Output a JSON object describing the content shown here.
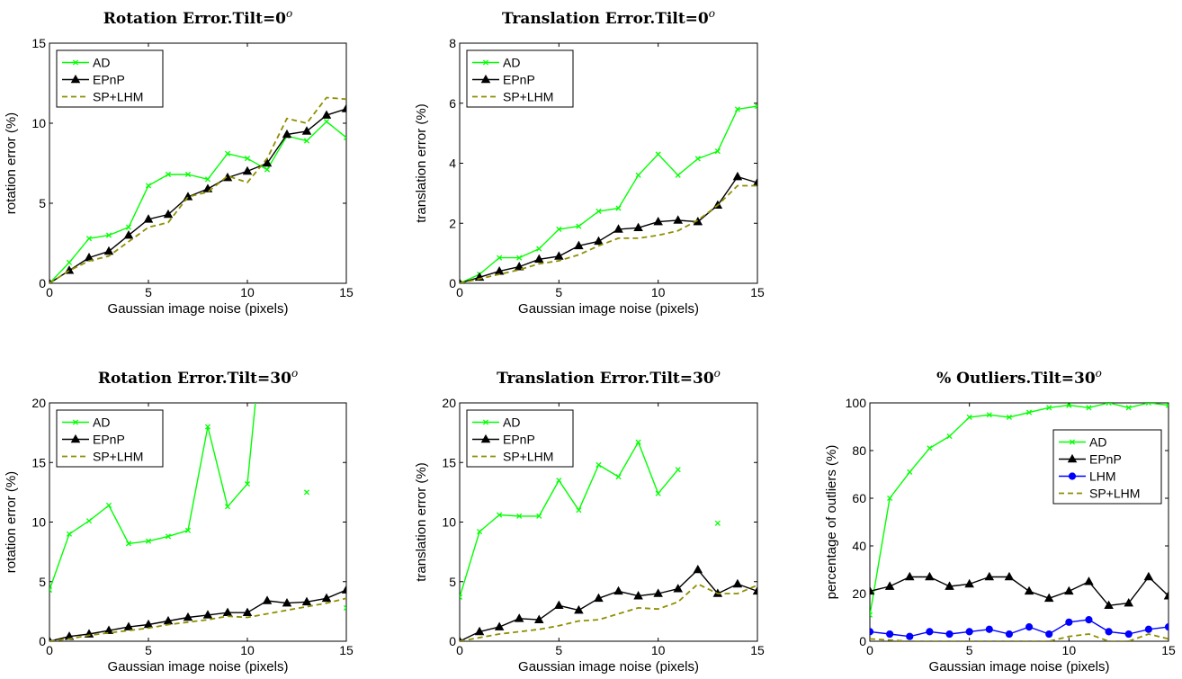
{
  "chart_data": [
    {
      "type": "line",
      "title": "Rotation Error.Tilt=0",
      "title_sup": "o",
      "xlabel": "Gaussian image noise (pixels)",
      "ylabel": "rotation error (%)",
      "xlim": [
        0,
        15
      ],
      "ylim": [
        0,
        15
      ],
      "xticks": [
        0,
        5,
        10,
        15
      ],
      "yticks": [
        0,
        5,
        10,
        15
      ],
      "legend_position": "top-left",
      "series": [
        {
          "name": "AD",
          "color": "#00ff00",
          "marker": "x",
          "dash": "solid",
          "x": [
            0,
            1,
            2,
            3,
            4,
            5,
            6,
            7,
            8,
            9,
            10,
            11,
            12,
            13,
            14,
            15
          ],
          "y": [
            0,
            1.3,
            2.8,
            3.0,
            3.5,
            6.1,
            6.8,
            6.8,
            6.5,
            8.1,
            7.8,
            7.1,
            9.2,
            8.9,
            10.1,
            9.1
          ]
        },
        {
          "name": "EPnP",
          "color": "#000000",
          "marker": "triangle",
          "dash": "solid",
          "x": [
            0,
            1,
            2,
            3,
            4,
            5,
            6,
            7,
            8,
            9,
            10,
            11,
            12,
            13,
            14,
            15
          ],
          "y": [
            0,
            0.8,
            1.6,
            2.0,
            3.0,
            4.0,
            4.3,
            5.4,
            5.9,
            6.6,
            7.0,
            7.5,
            9.3,
            9.5,
            10.5,
            10.9
          ]
        },
        {
          "name": "SP+LHM",
          "color": "#8f8f00",
          "marker": "none",
          "dash": "dashed",
          "x": [
            0,
            1,
            2,
            3,
            4,
            5,
            6,
            7,
            8,
            9,
            10,
            11,
            12,
            13,
            14,
            15
          ],
          "y": [
            0,
            0.8,
            1.4,
            1.7,
            2.6,
            3.5,
            3.8,
            5.4,
            5.7,
            6.7,
            6.3,
            7.8,
            10.3,
            10.0,
            11.6,
            11.5
          ]
        }
      ]
    },
    {
      "type": "line",
      "title": "Translation Error.Tilt=0",
      "title_sup": "o",
      "xlabel": "Gaussian image noise (pixels)",
      "ylabel": "translation error (%)",
      "xlim": [
        0,
        15
      ],
      "ylim": [
        0,
        8
      ],
      "xticks": [
        0,
        5,
        10,
        15
      ],
      "yticks": [
        0,
        2,
        4,
        6,
        8
      ],
      "legend_position": "top-left",
      "series": [
        {
          "name": "AD",
          "color": "#00ff00",
          "marker": "x",
          "dash": "solid",
          "x": [
            0,
            1,
            2,
            3,
            4,
            5,
            6,
            7,
            8,
            9,
            10,
            11,
            12,
            13,
            14,
            15
          ],
          "y": [
            0,
            0.3,
            0.85,
            0.85,
            1.15,
            1.8,
            1.9,
            2.4,
            2.5,
            3.6,
            4.3,
            3.6,
            4.15,
            4.4,
            5.8,
            5.9
          ]
        },
        {
          "name": "EPnP",
          "color": "#000000",
          "marker": "triangle",
          "dash": "solid",
          "x": [
            0,
            1,
            2,
            3,
            4,
            5,
            6,
            7,
            8,
            9,
            10,
            11,
            12,
            13,
            14,
            15
          ],
          "y": [
            0,
            0.2,
            0.4,
            0.55,
            0.8,
            0.9,
            1.25,
            1.4,
            1.8,
            1.85,
            2.05,
            2.1,
            2.05,
            2.6,
            3.55,
            3.35
          ]
        },
        {
          "name": "SP+LHM",
          "color": "#8f8f00",
          "marker": "none",
          "dash": "dashed",
          "x": [
            0,
            1,
            2,
            3,
            4,
            5,
            6,
            7,
            8,
            9,
            10,
            11,
            12,
            13,
            14,
            15
          ],
          "y": [
            0,
            0.15,
            0.3,
            0.45,
            0.65,
            0.75,
            0.95,
            1.25,
            1.5,
            1.5,
            1.6,
            1.75,
            2.1,
            2.6,
            3.25,
            3.25
          ]
        }
      ]
    },
    {
      "type": "line",
      "title": "Rotation Error.Tilt=30",
      "title_sup": "o",
      "xlabel": "Gaussian image noise (pixels)",
      "ylabel": "rotation error (%)",
      "xlim": [
        0,
        15
      ],
      "ylim": [
        0,
        20
      ],
      "xticks": [
        0,
        5,
        10,
        15
      ],
      "yticks": [
        0,
        5,
        10,
        15,
        20
      ],
      "legend_position": "top-left",
      "series": [
        {
          "name": "AD",
          "color": "#00ff00",
          "marker": "x",
          "dash": "solid",
          "x": [
            0,
            1,
            2,
            3,
            4,
            5,
            6,
            7,
            8,
            9,
            10,
            11,
            null,
            13,
            null,
            15
          ],
          "y": [
            4.3,
            9.0,
            10.1,
            11.4,
            8.2,
            8.4,
            8.8,
            9.3,
            18.0,
            11.3,
            13.2,
            30,
            null,
            12.5,
            null,
            2.8
          ]
        },
        {
          "name": "EPnP",
          "color": "#000000",
          "marker": "triangle",
          "dash": "solid",
          "x": [
            0,
            1,
            2,
            3,
            4,
            5,
            6,
            7,
            8,
            9,
            10,
            11,
            12,
            13,
            14,
            15
          ],
          "y": [
            0,
            0.4,
            0.6,
            0.9,
            1.2,
            1.4,
            1.7,
            2.0,
            2.2,
            2.4,
            2.4,
            3.4,
            3.2,
            3.3,
            3.6,
            4.3
          ]
        },
        {
          "name": "SP+LHM",
          "color": "#8f8f00",
          "marker": "none",
          "dash": "dashed",
          "x": [
            0,
            1,
            2,
            3,
            4,
            5,
            6,
            7,
            8,
            9,
            10,
            11,
            12,
            13,
            14,
            15
          ],
          "y": [
            0,
            0.2,
            0.5,
            0.7,
            0.9,
            1.1,
            1.4,
            1.6,
            1.8,
            2.1,
            2.0,
            2.3,
            2.6,
            2.9,
            3.2,
            3.6
          ]
        }
      ]
    },
    {
      "type": "line",
      "title": "Translation Error.Tilt=30",
      "title_sup": "o",
      "xlabel": "Gaussian image noise (pixels)",
      "ylabel": "translation error (%)",
      "xlim": [
        0,
        15
      ],
      "ylim": [
        0,
        20
      ],
      "xticks": [
        0,
        5,
        10,
        15
      ],
      "yticks": [
        0,
        5,
        10,
        15,
        20
      ],
      "legend_position": "top-left",
      "series": [
        {
          "name": "AD",
          "color": "#00ff00",
          "marker": "x",
          "dash": "solid",
          "x": [
            0,
            1,
            2,
            3,
            4,
            5,
            6,
            7,
            8,
            9,
            10,
            11,
            null,
            13,
            null,
            null
          ],
          "y": [
            3.7,
            9.2,
            10.6,
            10.5,
            10.5,
            13.5,
            11.0,
            14.8,
            13.8,
            16.7,
            12.4,
            14.4,
            null,
            9.9,
            null,
            null
          ]
        },
        {
          "name": "EPnP",
          "color": "#000000",
          "marker": "triangle",
          "dash": "solid",
          "x": [
            0,
            1,
            2,
            3,
            4,
            5,
            6,
            7,
            8,
            9,
            10,
            11,
            12,
            13,
            14,
            15
          ],
          "y": [
            0,
            0.8,
            1.2,
            1.9,
            1.8,
            3.0,
            2.6,
            3.6,
            4.2,
            3.8,
            4.0,
            4.4,
            6.0,
            4.0,
            4.8,
            4.2
          ]
        },
        {
          "name": "SP+LHM",
          "color": "#8f8f00",
          "marker": "none",
          "dash": "dashed",
          "x": [
            0,
            1,
            2,
            3,
            4,
            5,
            6,
            7,
            8,
            9,
            10,
            11,
            12,
            13,
            14,
            15
          ],
          "y": [
            0,
            0.3,
            0.6,
            0.8,
            1.0,
            1.3,
            1.7,
            1.8,
            2.3,
            2.8,
            2.7,
            3.3,
            4.8,
            4.0,
            4.0,
            4.7
          ]
        }
      ]
    },
    {
      "type": "line",
      "title": "% Outliers.Tilt=30",
      "title_sup": "o",
      "xlabel": "Gaussian image noise (pixels)",
      "ylabel": "percentage of outliers (%)",
      "xlim": [
        0,
        15
      ],
      "ylim": [
        0,
        100
      ],
      "xticks": [
        0,
        5,
        10,
        15
      ],
      "yticks": [
        0,
        20,
        40,
        60,
        80,
        100
      ],
      "legend_position": "right",
      "series": [
        {
          "name": "AD",
          "color": "#00ff00",
          "marker": "x",
          "dash": "solid",
          "x": [
            0,
            1,
            2,
            3,
            4,
            5,
            6,
            7,
            8,
            9,
            10,
            11,
            12,
            13,
            14,
            15
          ],
          "y": [
            11,
            60,
            71,
            81,
            86,
            94,
            95,
            94,
            96,
            98,
            99,
            98,
            100,
            98,
            100,
            99
          ]
        },
        {
          "name": "EPnP",
          "color": "#000000",
          "marker": "triangle",
          "dash": "solid",
          "x": [
            0,
            1,
            2,
            3,
            4,
            5,
            6,
            7,
            8,
            9,
            10,
            11,
            12,
            13,
            14,
            15
          ],
          "y": [
            21,
            23,
            27,
            27,
            23,
            24,
            27,
            27,
            21,
            18,
            21,
            25,
            15,
            16,
            27,
            19
          ]
        },
        {
          "name": "LHM",
          "color": "#0000ff",
          "marker": "circle",
          "dash": "solid",
          "x": [
            0,
            1,
            2,
            3,
            4,
            5,
            6,
            7,
            8,
            9,
            10,
            11,
            12,
            13,
            14,
            15
          ],
          "y": [
            4,
            3,
            2,
            4,
            3,
            4,
            5,
            3,
            6,
            3,
            8,
            9,
            4,
            3,
            5,
            6
          ]
        },
        {
          "name": "SP+LHM",
          "color": "#8f8f00",
          "marker": "none",
          "dash": "dashed",
          "x": [
            0,
            1,
            2,
            3,
            4,
            5,
            6,
            7,
            8,
            9,
            10,
            11,
            12,
            13,
            14,
            15
          ],
          "y": [
            1,
            0.5,
            0,
            0,
            0,
            0,
            0,
            0,
            0,
            0,
            2,
            3,
            0,
            0,
            3,
            1
          ]
        }
      ]
    }
  ]
}
